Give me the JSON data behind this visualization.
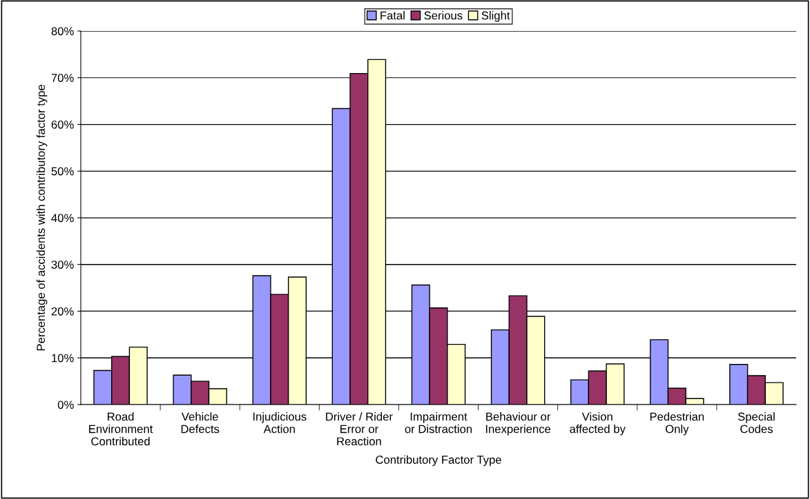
{
  "chart_data": {
    "type": "bar",
    "xlabel": "Contributory Factor Type",
    "ylabel": "Percentage of accidents with contributory factor type",
    "categories": [
      "Road\nEnvironment\nContributed",
      "Vehicle\nDefects",
      "Injudicious\nAction",
      "Driver / Rider\nError or\nReaction",
      "Impairment\nor Distraction",
      "Behaviour or\nInexperience",
      "Vision\naffected by",
      "Pedestrian\nOnly",
      "Special\nCodes"
    ],
    "series": [
      {
        "name": "Fatal",
        "color": "#9999ff",
        "values": [
          7.3,
          6.3,
          27.6,
          63.4,
          25.6,
          16.0,
          5.3,
          13.9,
          8.6
        ]
      },
      {
        "name": "Serious",
        "color": "#993366",
        "values": [
          10.3,
          5.0,
          23.6,
          70.9,
          20.7,
          23.3,
          7.2,
          3.5,
          6.2
        ]
      },
      {
        "name": "Slight",
        "color": "#ffffcc",
        "values": [
          12.3,
          3.4,
          27.3,
          73.9,
          12.9,
          18.9,
          8.7,
          1.3,
          4.7
        ]
      }
    ],
    "ylim": [
      0,
      80
    ],
    "yticks": [
      {
        "value": 0,
        "label": "0%"
      },
      {
        "value": 10,
        "label": "10%"
      },
      {
        "value": 20,
        "label": "20%"
      },
      {
        "value": 30,
        "label": "30%"
      },
      {
        "value": 40,
        "label": "40%"
      },
      {
        "value": 50,
        "label": "50%"
      },
      {
        "value": 60,
        "label": "60%"
      },
      {
        "value": 70,
        "label": "70%"
      },
      {
        "value": 80,
        "label": "80%"
      }
    ],
    "grid": "y",
    "legend": "top"
  }
}
